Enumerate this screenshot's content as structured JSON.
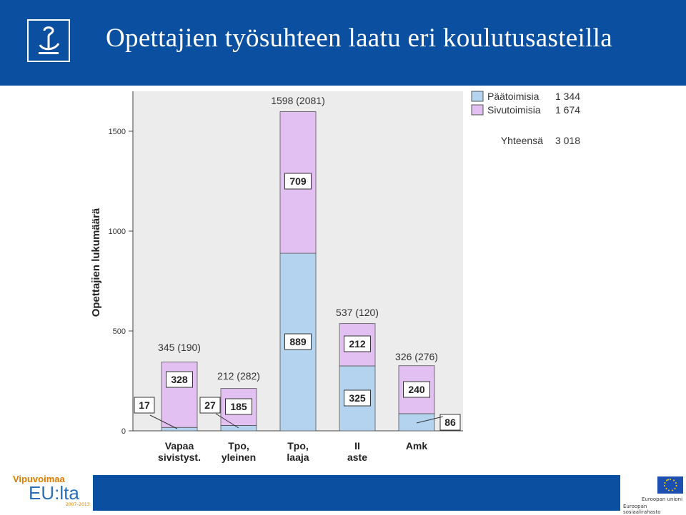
{
  "slide": {
    "title": "Opettajien työsuhteen laatu eri koulutusasteilla"
  },
  "logos": {
    "brand_top": "Vipuvoimaa",
    "brand_mid": "EU:lta",
    "brand_years": "2007–2013",
    "eu_line1": "Euroopan unioni",
    "eu_line2": "Euroopan sosiaalirahasto"
  },
  "colors": {
    "header": "#0a4fa0",
    "paatoimisia": "#b3d3ee",
    "sivutoimisia": "#e2c0f2",
    "plot_bg": "#ececec"
  },
  "chart_data": {
    "type": "bar",
    "stacked": true,
    "ylabel": "Opettajien lukumäärä",
    "ylim": [
      0,
      1700
    ],
    "yticks": [
      0,
      500,
      1000,
      1500
    ],
    "categories": [
      "Vapaa sivistyst.",
      "Tpo, yleinen",
      "Tpo, laaja",
      "II aste",
      "Amk"
    ],
    "series": [
      {
        "name": "Päätoimisia",
        "values": [
          17,
          27,
          889,
          325,
          86
        ],
        "color": "#b3d3ee"
      },
      {
        "name": "Sivutoimisia",
        "values": [
          328,
          185,
          709,
          212,
          240
        ],
        "color": "#e2c0f2"
      }
    ],
    "series_labels": [
      [
        "17",
        "27",
        "889",
        "325",
        "86"
      ],
      [
        "328",
        "185",
        "709",
        "212",
        "240"
      ]
    ],
    "top_labels": [
      "345 (190)",
      "212 (282)",
      "1598 (2081)",
      "537 (120)",
      "326 (276)"
    ],
    "legend": {
      "position": "top-right",
      "items": [
        {
          "label": "Päätoimisia",
          "value": "1 344"
        },
        {
          "label": "Sivutoimisia",
          "value": "1 674"
        }
      ],
      "total_label": "Yhteensä",
      "total_value": "3 018"
    },
    "grid": false
  }
}
